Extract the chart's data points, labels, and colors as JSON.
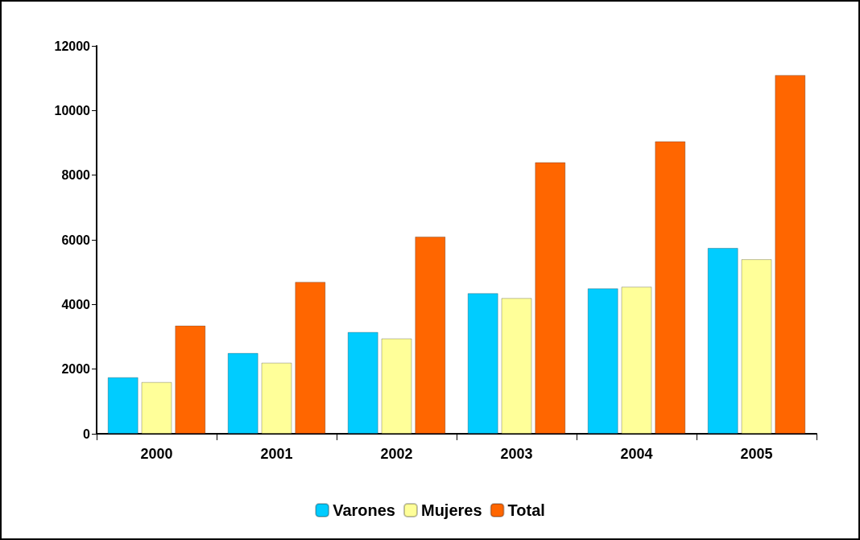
{
  "chart_data": {
    "type": "bar",
    "categories": [
      "2000",
      "2001",
      "2002",
      "2003",
      "2004",
      "2005"
    ],
    "series": [
      {
        "name": "Varones",
        "color": "#00ccff",
        "values": [
          1750,
          2500,
          3150,
          4350,
          4500,
          5750
        ]
      },
      {
        "name": "Mujeres",
        "color": "#ffff99",
        "values": [
          1600,
          2200,
          2950,
          4200,
          4550,
          5400
        ]
      },
      {
        "name": "Total",
        "color": "#ff6600",
        "values": [
          3350,
          4700,
          6100,
          8400,
          9050,
          11100
        ]
      }
    ],
    "ylim": [
      0,
      12000
    ],
    "yticks": [
      0,
      2000,
      4000,
      6000,
      8000,
      10000,
      12000
    ],
    "grid": false,
    "legend": "bottom"
  }
}
